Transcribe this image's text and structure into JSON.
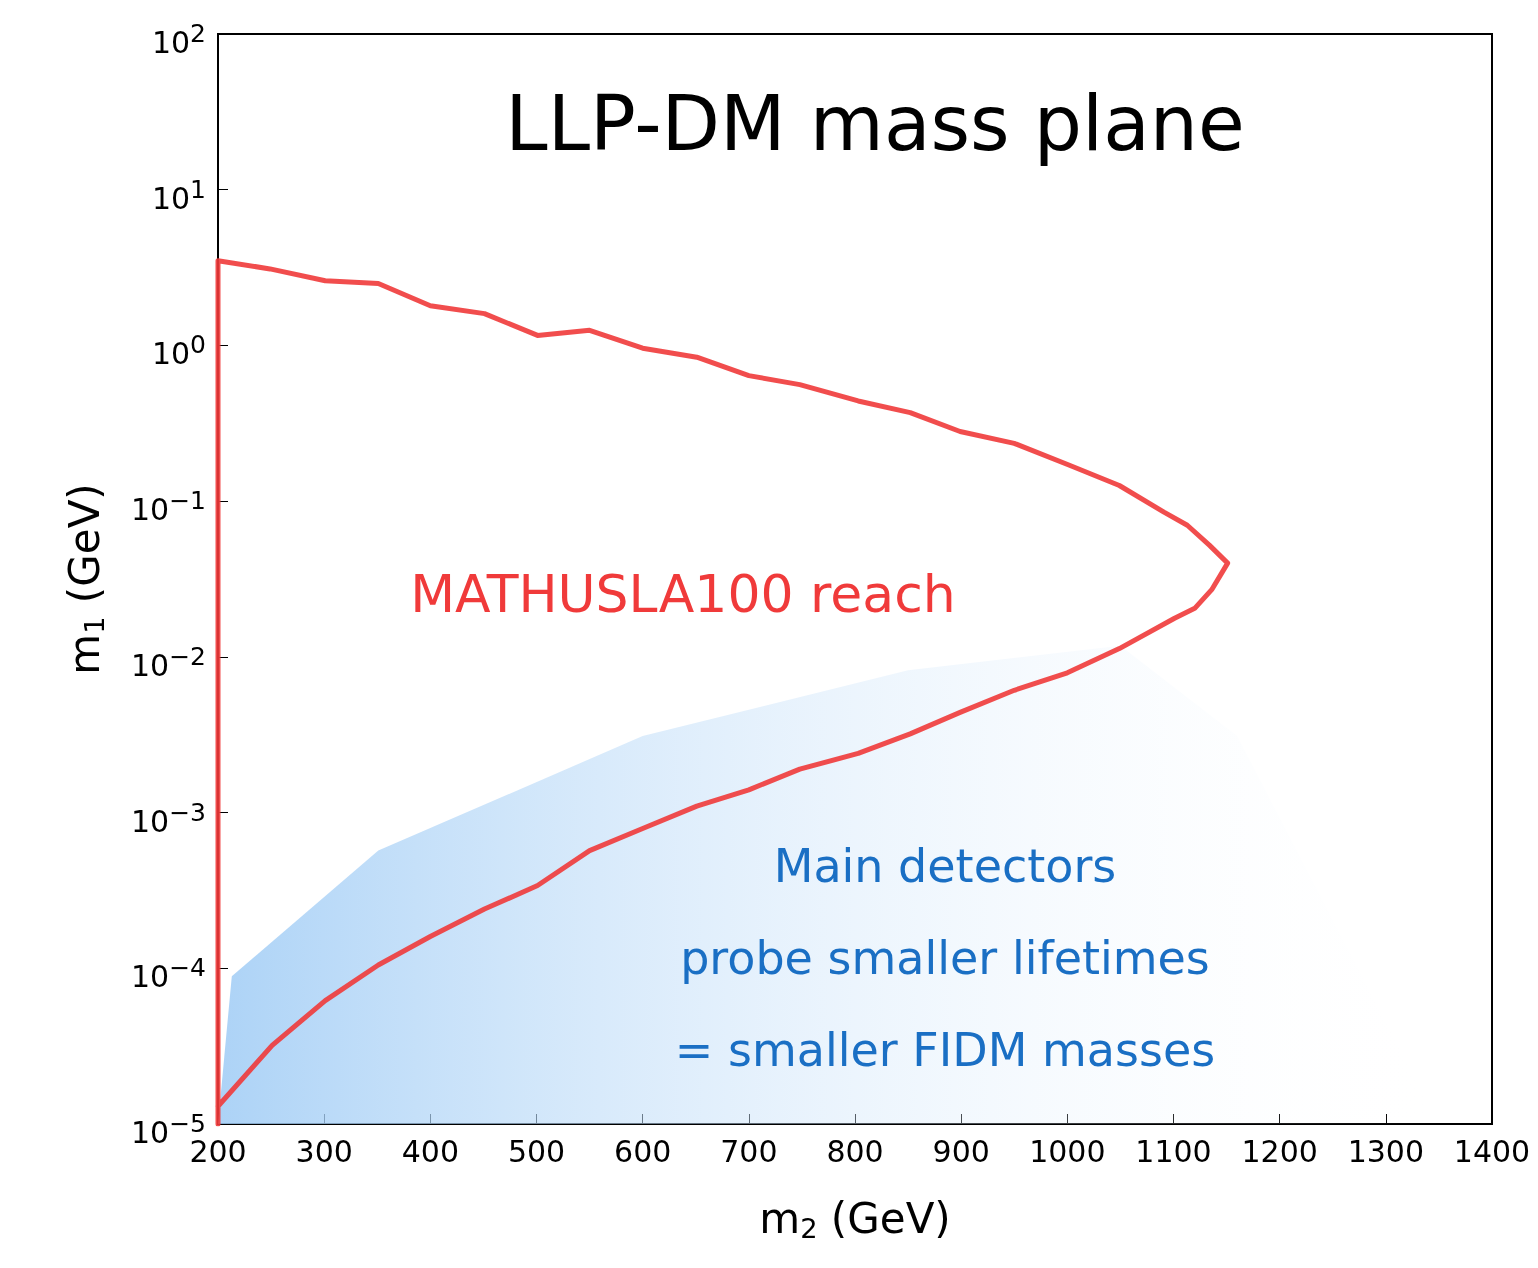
{
  "chart_data": {
    "type": "line",
    "title": "LLP-DM mass plane",
    "xlabel": "m$_{2}$ (GeV)",
    "ylabel": "m$_{1}$ (GeV)",
    "xlim": [
      200,
      1400
    ],
    "xticks": [
      200,
      300,
      400,
      500,
      600,
      700,
      800,
      900,
      1000,
      1100,
      1200,
      1300,
      1400
    ],
    "ylim": [
      1e-05,
      100
    ],
    "log": "y",
    "yticks": [
      {
        "value": 1e-05,
        "label": "10$^{−5}$"
      },
      {
        "value": 0.0001,
        "label": "10$^{−4}$"
      },
      {
        "value": 0.001,
        "label": "10$^{−3}$"
      },
      {
        "value": 0.01,
        "label": "10$^{−2}$"
      },
      {
        "value": 0.1,
        "label": "10$^{−1}$"
      },
      {
        "value": 1,
        "label": "10$^{0}$"
      },
      {
        "value": 10,
        "label": "10$^{1}$"
      },
      {
        "value": 100,
        "label": "10$^{2}$"
      }
    ],
    "grid": false,
    "legend": false,
    "marker": "none",
    "line_style": "solid",
    "series": [
      {
        "name": "Main detectors\nprobe smaller lifetimes\n= smaller FIDM masses",
        "type": "area",
        "color": "#9ecbf5",
        "x": [
          200,
          213,
          351,
          600,
          850,
          1050,
          1160,
          1350
        ],
        "values": [
          1e-05,
          8.9e-05,
          0.00057,
          0.0031,
          0.0082,
          0.0118,
          0.0031,
          1e-05
        ]
      },
      {
        "name": "MATHUSLA100 reach",
        "type": "line",
        "color": "#f03a3a",
        "x": [
          200,
          200,
          249,
          301,
          351,
          400,
          451,
          501,
          550,
          600,
          651,
          700,
          748,
          803,
          852,
          899,
          950,
          1002,
          1049,
          1091,
          1113,
          1134,
          1151,
          1136,
          1120,
          1101,
          1049,
          1000,
          950,
          899,
          852,
          803,
          748,
          700,
          651,
          600,
          550,
          501,
          451,
          400,
          351,
          301,
          251,
          200
        ],
        "values": [
          1e-05,
          3.5,
          3.1,
          2.6,
          2.5,
          1.8,
          1.6,
          1.16,
          1.25,
          0.96,
          0.84,
          0.64,
          0.56,
          0.44,
          0.37,
          0.28,
          0.235,
          0.17,
          0.126,
          0.085,
          0.07,
          0.052,
          0.04,
          0.027,
          0.0205,
          0.0177,
          0.0113,
          0.0079,
          0.0061,
          0.0044,
          0.0032,
          0.0024,
          0.0019,
          0.0014,
          0.0011,
          0.00079,
          0.00057,
          0.00034,
          0.00024,
          0.00016,
          0.000105,
          6.2e-05,
          3.2e-05,
          1.3e-05
        ]
      }
    ]
  }
}
